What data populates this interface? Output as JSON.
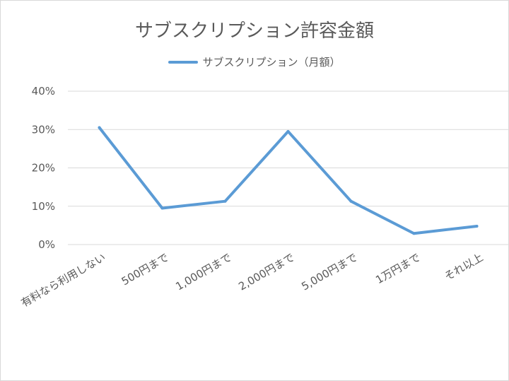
{
  "chart_data": {
    "type": "line",
    "title": "サブスクリプション許容金額",
    "categories": [
      "有料なら利用しない",
      "500円まで",
      "1,000円まで",
      "2,000円まで",
      "5,000円まで",
      "1万円まで",
      "それ以上"
    ],
    "series": [
      {
        "name": "サブスクリプション（月額）",
        "values": [
          30.5,
          9.5,
          11.3,
          29.5,
          11.3,
          2.9,
          4.8
        ],
        "color": "#5b9bd5"
      }
    ],
    "ylim": [
      0,
      40
    ],
    "yticks": [
      0,
      10,
      20,
      30,
      40
    ],
    "ytick_labels": [
      "0%",
      "10%",
      "20%",
      "30%",
      "40%"
    ],
    "xlabel": "",
    "ylabel": "",
    "grid": true,
    "legend": "top"
  },
  "colors": {
    "grid": "#d9d9d9",
    "text": "#595959"
  }
}
